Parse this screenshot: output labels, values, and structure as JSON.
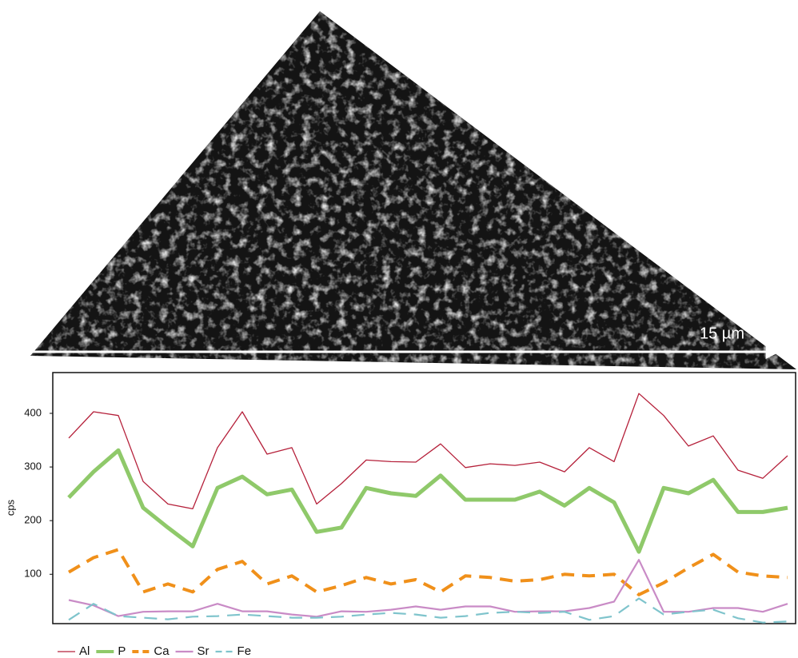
{
  "image": {
    "scale_label": "15 µm"
  },
  "chart_data": {
    "type": "line",
    "y_label": "cps",
    "ylim": [
      8,
      476
    ],
    "yticks": [
      100,
      200,
      300,
      400
    ],
    "series": [
      {
        "name": "Al",
        "color": "#b5203a",
        "width": 1.3,
        "dashed": false,
        "values": [
          354,
          403,
          396,
          273,
          231,
          222,
          336,
          403,
          324,
          336,
          231,
          269,
          313,
          310,
          309,
          343,
          299,
          306,
          303,
          309,
          291,
          336,
          310,
          437,
          396,
          339,
          358,
          294,
          279,
          321
        ]
      },
      {
        "name": "P",
        "color": "#8fc96a",
        "width": 5,
        "dashed": false,
        "values": [
          243,
          291,
          331,
          224,
          187,
          152,
          261,
          282,
          249,
          258,
          179,
          187,
          261,
          251,
          246,
          284,
          239,
          239,
          239,
          254,
          228,
          261,
          234,
          142,
          261,
          251,
          276,
          216,
          216,
          224
        ]
      },
      {
        "name": "Ca",
        "color": "#f0901a",
        "width": 4,
        "dashed": true,
        "values": [
          104,
          131,
          146,
          67,
          82,
          67,
          109,
          124,
          82,
          97,
          67,
          79,
          94,
          82,
          90,
          67,
          97,
          94,
          87,
          90,
          100,
          97,
          100,
          62,
          84,
          112,
          137,
          104,
          97,
          94
        ]
      },
      {
        "name": "Sr",
        "color": "#c98bc6",
        "width": 2.2,
        "dashed": false,
        "values": [
          52,
          42,
          22,
          30,
          31,
          31,
          45,
          31,
          31,
          25,
          21,
          31,
          30,
          34,
          40,
          34,
          40,
          40,
          30,
          31,
          31,
          37,
          49,
          127,
          30,
          30,
          37,
          37,
          30,
          45
        ]
      },
      {
        "name": "Fe",
        "color": "#7fc4cc",
        "width": 2.2,
        "dashed": true,
        "values": [
          15,
          45,
          22,
          19,
          16,
          21,
          22,
          25,
          22,
          19,
          19,
          21,
          25,
          28,
          25,
          19,
          22,
          28,
          30,
          28,
          30,
          15,
          22,
          55,
          25,
          30,
          34,
          18,
          10,
          12
        ]
      }
    ]
  }
}
